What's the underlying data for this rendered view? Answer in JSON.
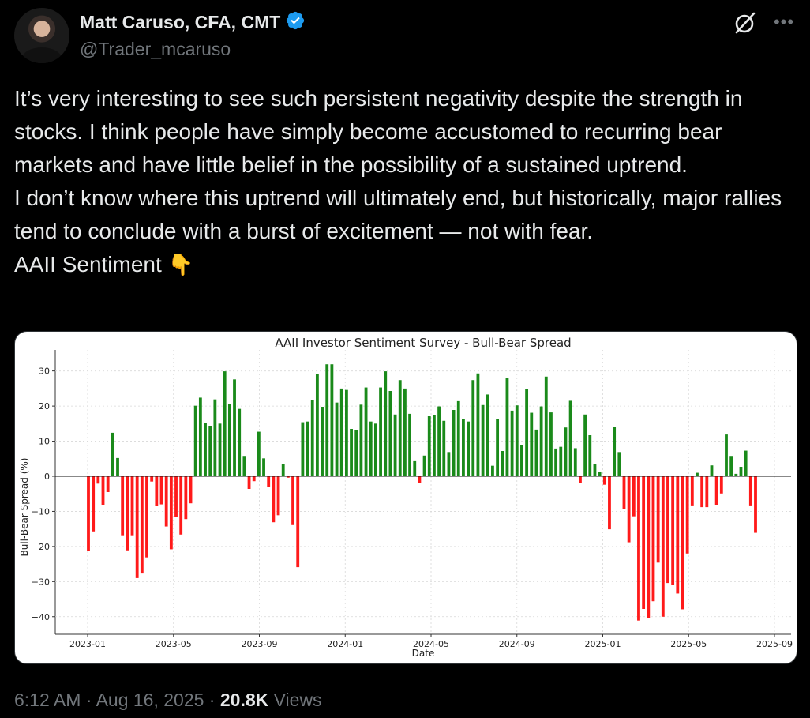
{
  "author": {
    "name": "Matt Caruso, CFA, CMT",
    "handle": "@Trader_mcaruso",
    "verified_color": "#1d9bf0"
  },
  "tweet": {
    "lines": [
      "It’s very interesting to see such persistent negativity despite the strength in stocks. I think people have simply become accustomed to recurring bear markets and have little belief in the possibility of a sustained uptrend.",
      "I don’t know where this uptrend will ultimately end, but historically, major rallies tend to conclude with a burst of excitement — not with fear."
    ],
    "last_line": "AAII Sentiment",
    "emoji": "👇"
  },
  "meta": {
    "time": "6:12 AM",
    "date": "Aug 16, 2025",
    "views_count": "20.8K",
    "views_label": "Views"
  },
  "icons": {
    "grok": "grok-icon",
    "more": "more-icon",
    "verified": "verified-badge-icon"
  },
  "chart_data": {
    "type": "bar",
    "title": "AAII Investor Sentiment Survey - Bull-Bear Spread",
    "xlabel": "Date",
    "ylabel": "Bull-Bear Spread (%)",
    "ylim": [
      -45,
      36
    ],
    "yticks": [
      30,
      20,
      10,
      0,
      -10,
      -20,
      -30,
      -40
    ],
    "xticks": [
      "2023-01",
      "2023-05",
      "2023-09",
      "2024-01",
      "2024-05",
      "2024-09",
      "2025-01",
      "2025-05",
      "2025-09"
    ],
    "grid": true,
    "positive_color": "#1a8a1a",
    "negative_color": "#ff1a1a",
    "values": [
      -21.2,
      -15.7,
      -2.1,
      -8.1,
      -4.5,
      12.4,
      5.2,
      -16.8,
      -21.1,
      -16.8,
      -29.0,
      -27.7,
      -23.1,
      -1.5,
      -8.4,
      -8.0,
      -14.3,
      -20.8,
      -11.6,
      -16.6,
      -12.2,
      -7.7,
      20.1,
      22.4,
      15.1,
      14.4,
      21.9,
      15.0,
      29.9,
      20.6,
      27.6,
      19.2,
      5.8,
      -3.6,
      -1.4,
      12.7,
      5.1,
      -3.0,
      -13.1,
      -11.1,
      3.5,
      -0.4,
      -13.9,
      -25.9,
      15.4,
      15.6,
      21.7,
      29.2,
      19.8,
      31.9,
      31.9,
      21.0,
      25.0,
      24.6,
      13.5,
      13.1,
      20.4,
      25.3,
      15.6,
      15.0,
      25.3,
      29.9,
      24.3,
      17.6,
      27.4,
      25.0,
      17.8,
      4.3,
      -1.8,
      5.9,
      17.1,
      17.5,
      19.9,
      15.8,
      6.9,
      18.9,
      21.4,
      16.2,
      15.6,
      27.4,
      29.3,
      20.3,
      23.3,
      3.0,
      16.4,
      7.2,
      28.0,
      18.7,
      20.2,
      9.0,
      24.9,
      18.1,
      13.3,
      19.9,
      28.4,
      18.2,
      7.9,
      8.4,
      13.9,
      21.5,
      8.0,
      -1.8,
      17.6,
      11.7,
      3.6,
      1.2,
      -2.4,
      -15.1,
      14.0,
      6.9,
      -9.4,
      -18.8,
      -11.4,
      -41.1,
      -37.8,
      -40.3,
      -35.6,
      -24.6,
      -40.0,
      -30.4,
      -31.0,
      -33.4,
      -37.9,
      -22.0,
      -8.3,
      1.0,
      -8.8,
      -8.8,
      3.1,
      -8.1,
      -4.9,
      11.9,
      5.8,
      0.7,
      2.7,
      7.3,
      -8.3,
      -16.1
    ]
  }
}
